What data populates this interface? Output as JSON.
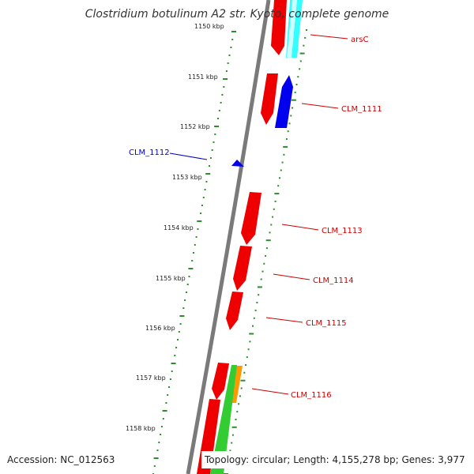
{
  "title": "Clostridium botulinum A2 str. Kyoto, complete genome",
  "footer": {
    "accession": "Accession: NC_012563",
    "topology": "Topology: circular; Length: 4,155,278 bp; Genes: 3,977"
  },
  "colors": {
    "backbone": "#7a7a7a",
    "ruler": "#2e8b2e",
    "forward_gene": "#ee0000",
    "reverse_gene": "#0000ee",
    "label_red": "#cc0000",
    "label_blue": "#0000cc",
    "cyan_feature": "#33ffff",
    "green_feature": "#33cc33",
    "orange_feature": "#ff9900"
  },
  "kbp_ticks": [
    "1150 kbp",
    "1151 kbp",
    "1152 kbp",
    "1153 kbp",
    "1154 kbp",
    "1155 kbp",
    "1156 kbp",
    "1157 kbp",
    "1158 kbp"
  ],
  "genes": [
    {
      "name": "arsC",
      "label_color": "red"
    },
    {
      "name": "CLM_1111",
      "label_color": "red"
    },
    {
      "name": "CLM_1112",
      "label_color": "blue"
    },
    {
      "name": "CLM_1113",
      "label_color": "red"
    },
    {
      "name": "CLM_1114",
      "label_color": "red"
    },
    {
      "name": "CLM_1115",
      "label_color": "red"
    },
    {
      "name": "CLM_1116",
      "label_color": "red"
    }
  ]
}
